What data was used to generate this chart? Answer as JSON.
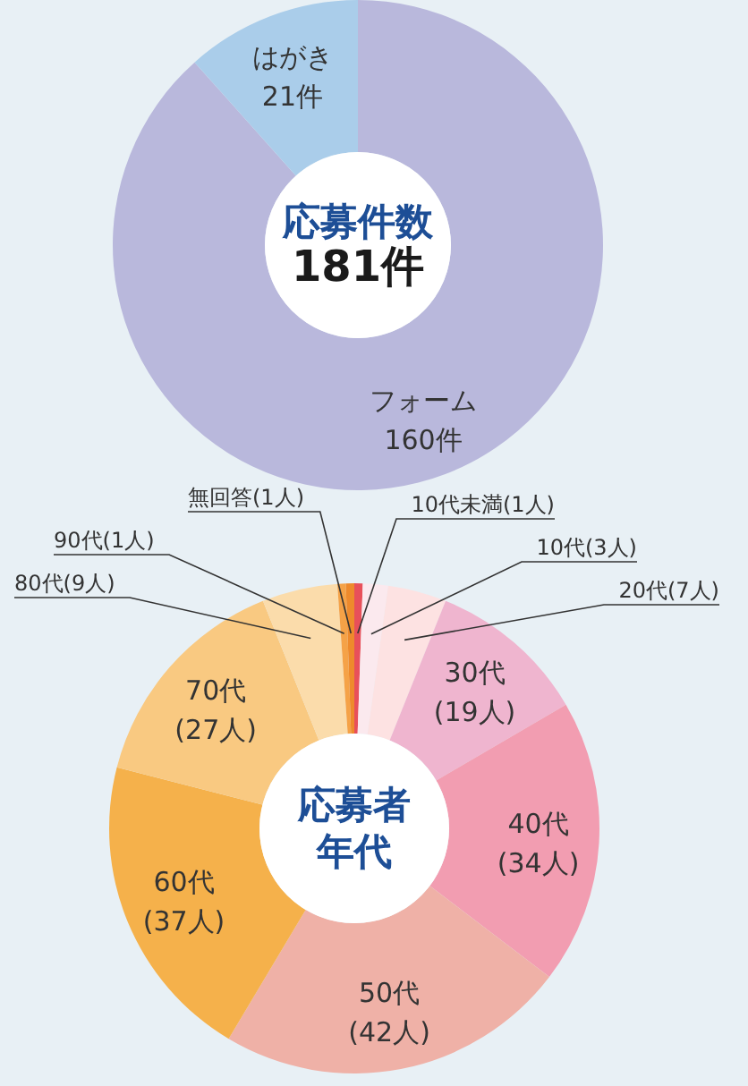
{
  "chart_data": [
    {
      "type": "donut",
      "title": "応募件数",
      "subtitle": "181件",
      "categories": [
        "フォーム",
        "はがき"
      ],
      "values": [
        160,
        21
      ],
      "colors": [
        "#b9b8dc",
        "#aacdea"
      ],
      "value_labels": [
        "160件",
        "21件"
      ]
    },
    {
      "type": "donut",
      "title": "応募者年代",
      "categories": [
        "10代未満",
        "10代",
        "20代",
        "30代",
        "40代",
        "50代",
        "60代",
        "70代",
        "80代",
        "90代",
        "無回答"
      ],
      "values": [
        1,
        3,
        7,
        19,
        34,
        42,
        37,
        27,
        9,
        1,
        1
      ],
      "colors": [
        "#e8505a",
        "#fbe9ee",
        "#fde2e2",
        "#efb5cf",
        "#f29db1",
        "#efb1a7",
        "#f5b14b",
        "#f9c981",
        "#fbdcab",
        "#f5a247",
        "#ee8a2c"
      ],
      "value_labels": [
        "(1人)",
        "(3人)",
        "(7人)",
        "(19人)",
        "(34人)",
        "(42人)",
        "(37人)",
        "(27人)",
        "(9人)",
        "(1人)",
        "(1人)"
      ]
    }
  ]
}
